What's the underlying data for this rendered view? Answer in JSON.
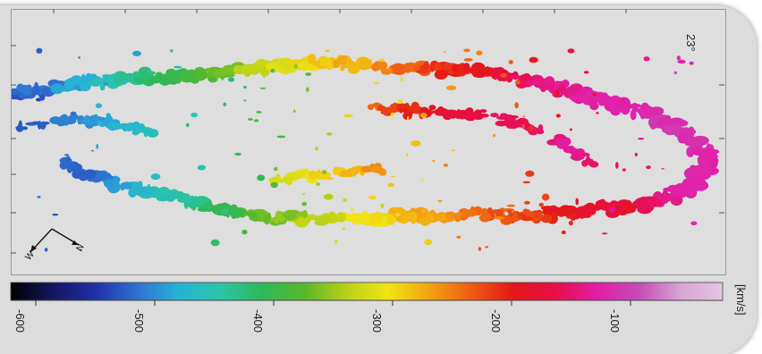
{
  "image": {
    "angle_label": "23°",
    "colorbar": {
      "unit_label": "[km/s]",
      "tick_labels": [
        "-600",
        "-500",
        "-400",
        "-300",
        "-200",
        "-100"
      ],
      "colors": [
        "#000000",
        "#151560",
        "#1f2fa8",
        "#2f6fd1",
        "#27b2d6",
        "#2bc4a8",
        "#2db85a",
        "#57b82c",
        "#b8d018",
        "#f1e515",
        "#f2a312",
        "#ee5b14",
        "#e31717",
        "#e80e4b",
        "#e21ea8",
        "#c54bb7",
        "#d7a4d4",
        "#e6c6e1"
      ]
    },
    "compass": {
      "arrows": 2
    }
  }
}
